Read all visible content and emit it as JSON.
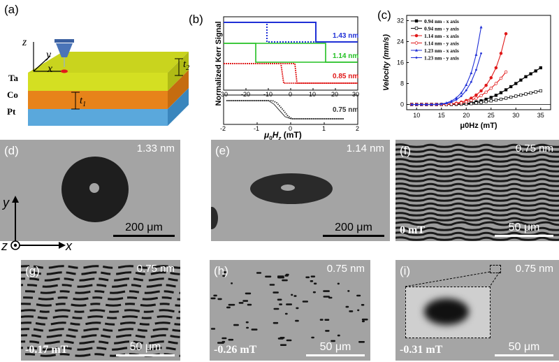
{
  "panel_a": {
    "label": "(a)",
    "axes": {
      "z": "z",
      "y": "y",
      "x": "x"
    },
    "layers": [
      "Ta",
      "Co",
      "Pt"
    ],
    "thickness_labels": {
      "top": "t",
      "top_sub": "2",
      "mid": "t",
      "mid_sub": "1"
    }
  },
  "panel_b": {
    "label": "(b)",
    "ylabel": "Normalized Kerr Signal",
    "xlabel_prefix": "μ",
    "xlabel_sub": "0",
    "xlabel_mid": "H",
    "xlabel_sub2": "z",
    "xlabel_unit": " (mT)",
    "top_ticks": [
      "-30",
      "-20",
      "-10",
      "0",
      "10",
      "20",
      "30"
    ],
    "bottom_ticks": [
      "-2",
      "-1",
      "0",
      "1",
      "2"
    ],
    "loop_labels": [
      {
        "text": "1.43 nm",
        "color": "#1f2fd6"
      },
      {
        "text": "1.14 nm",
        "color": "#22c022"
      },
      {
        "text": "0.85 nm",
        "color": "#e01818"
      },
      {
        "text": "0.75 nm",
        "color": "#333333"
      }
    ]
  },
  "panel_c": {
    "label": "(c)",
    "chart_data": {
      "type": "line",
      "title": "",
      "xlabel": "μ0Hz (mT)",
      "ylabel": "Velocity (mm/s)",
      "xlim": [
        8,
        37
      ],
      "ylim": [
        -2,
        34
      ],
      "xticks": [
        10,
        15,
        20,
        25,
        30,
        35
      ],
      "yticks": [
        0,
        8,
        16,
        24,
        32
      ],
      "series": [
        {
          "name": "0.94 nm - x axis",
          "color": "#000000",
          "marker": "square-filled",
          "x": [
            9,
            10,
            11,
            12,
            13,
            14,
            15,
            16,
            17,
            18,
            19,
            20,
            21,
            22,
            23,
            24,
            25,
            26,
            27,
            28,
            29,
            30,
            31,
            32,
            33,
            34,
            35
          ],
          "y": [
            0,
            0,
            0,
            0,
            0,
            0,
            0,
            0,
            0.05,
            0.1,
            0.2,
            0.4,
            0.7,
            1.0,
            1.4,
            2.0,
            2.7,
            3.5,
            4.5,
            5.6,
            6.8,
            8.0,
            9.3,
            10.6,
            11.7,
            12.8,
            14.0
          ]
        },
        {
          "name": "0.94 nm - y axis",
          "color": "#000000",
          "marker": "square-open",
          "x": [
            9,
            10,
            11,
            12,
            13,
            14,
            15,
            16,
            17,
            18,
            19,
            20,
            21,
            22,
            23,
            24,
            25,
            26,
            27,
            28,
            29,
            30,
            31,
            32,
            33,
            34,
            35
          ],
          "y": [
            0,
            0,
            0,
            0,
            0,
            0,
            0,
            0,
            0,
            0.05,
            0.1,
            0.2,
            0.35,
            0.55,
            0.8,
            1.1,
            1.4,
            1.7,
            2.0,
            2.4,
            2.8,
            3.2,
            3.6,
            4.0,
            4.4,
            4.8,
            5.2
          ]
        },
        {
          "name": "1.14 nm - x axis",
          "color": "#e01818",
          "marker": "circle-filled",
          "x": [
            9,
            10,
            11,
            12,
            13,
            14,
            15,
            16,
            17,
            18,
            19,
            20,
            21,
            22,
            23,
            24,
            25,
            26,
            27,
            28
          ],
          "y": [
            0,
            0,
            0,
            0,
            0,
            0,
            0,
            0.1,
            0.25,
            0.5,
            0.9,
            1.5,
            2.4,
            3.6,
            5.2,
            7.3,
            10.2,
            14.0,
            19.5,
            27.0
          ]
        },
        {
          "name": "1.14 nm - y axis",
          "color": "#e01818",
          "marker": "circle-open",
          "x": [
            9,
            10,
            11,
            12,
            13,
            14,
            15,
            16,
            17,
            18,
            19,
            20,
            21,
            22,
            23,
            24,
            25,
            26,
            27,
            28
          ],
          "y": [
            0,
            0,
            0,
            0,
            0,
            0,
            0,
            0.05,
            0.15,
            0.3,
            0.6,
            1.0,
            1.6,
            2.4,
            3.4,
            4.7,
            6.2,
            8.0,
            10.0,
            12.4
          ]
        },
        {
          "name": "1.23 nm - x axis",
          "color": "#1f2fd6",
          "marker": "triangle",
          "x": [
            9,
            10,
            11,
            12,
            13,
            14,
            15,
            16,
            17,
            18,
            19,
            20,
            21,
            22,
            23
          ],
          "y": [
            0,
            0,
            0,
            0,
            0,
            0.05,
            0.2,
            0.6,
            1.3,
            2.5,
            4.4,
            7.5,
            12.0,
            19.0,
            29.5
          ]
        },
        {
          "name": "1.23 nm - y axis",
          "color": "#1f2fd6",
          "marker": "star",
          "x": [
            9,
            10,
            11,
            12,
            13,
            14,
            15,
            16,
            17,
            18,
            19,
            20,
            21,
            22,
            23
          ],
          "y": [
            0,
            0,
            0,
            0,
            0,
            0.03,
            0.15,
            0.4,
            0.9,
            1.8,
            3.2,
            5.4,
            8.6,
            13.2,
            19.5
          ]
        }
      ]
    }
  },
  "panel_d": {
    "label": "(d)",
    "thickness": "1.33 nm",
    "scale": "200 μm"
  },
  "panel_e": {
    "label": "(e)",
    "thickness": "1.14 nm",
    "scale": "200 μm"
  },
  "panel_f": {
    "label": "(f)",
    "thickness": "0.75 nm",
    "field": "0 mT",
    "scale": "50 μm"
  },
  "panel_g": {
    "label": "(g)",
    "thickness": "0.75 nm",
    "field": "-0.17 mT",
    "scale": "50 μm"
  },
  "panel_h": {
    "label": "(h)",
    "thickness": "0.75 nm",
    "field": "-0.26 mT",
    "scale": "50 μm"
  },
  "panel_i": {
    "label": "(i)",
    "thickness": "0.75 nm",
    "field": "-0.31 mT",
    "scale": "50 μm"
  },
  "coord_axes": {
    "y": "y",
    "z": "z",
    "x": "x"
  }
}
